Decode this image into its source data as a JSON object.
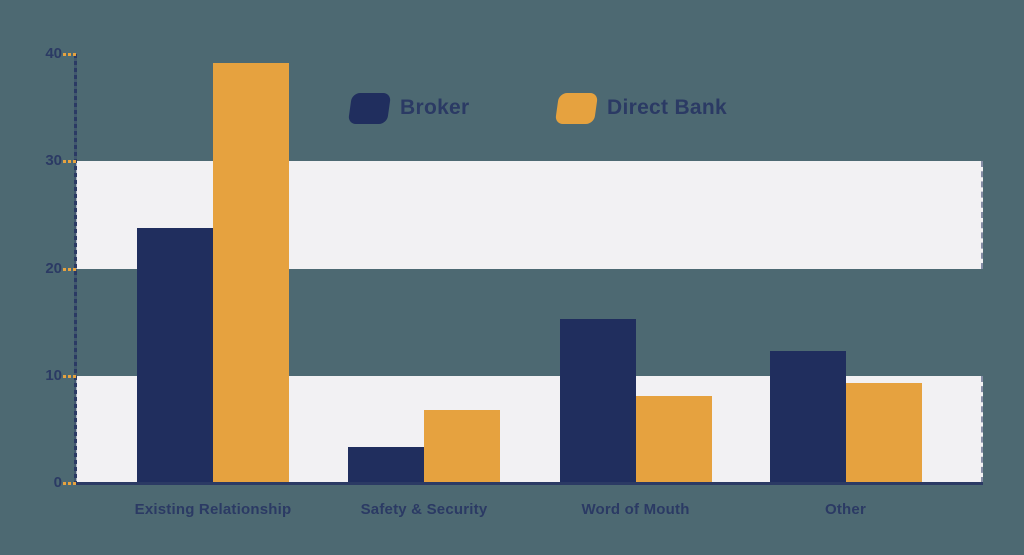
{
  "colors": {
    "background": "#4d6972",
    "band": "#f2f1f3",
    "broker": "#202e5e",
    "direct_bank": "#e6a23f",
    "axis_text": "#2b3a64",
    "tick_dash": "#e6a23f"
  },
  "legend": {
    "items": [
      {
        "label": "Broker",
        "color": "#202e5e"
      },
      {
        "label": "Direct Bank",
        "color": "#e6a23f"
      }
    ]
  },
  "chart_data": {
    "type": "bar",
    "title": "",
    "xlabel": "",
    "ylabel": "",
    "categories": [
      "Existing Relationship",
      "Safety & Security",
      "Word of Mouth",
      "Other"
    ],
    "series": [
      {
        "name": "Broker",
        "color": "#202e5e",
        "values": [
          23.8,
          3.4,
          15.3,
          12.3
        ]
      },
      {
        "name": "Direct Bank",
        "color": "#e6a23f",
        "values": [
          39.2,
          6.8,
          8.1,
          9.3
        ]
      }
    ],
    "ylim": [
      0,
      40
    ],
    "yticks": [
      0,
      10,
      20,
      30,
      40
    ],
    "band_ranges": [
      [
        0,
        10
      ],
      [
        20,
        30
      ]
    ],
    "grid": "off",
    "legend_position": "top-center"
  }
}
